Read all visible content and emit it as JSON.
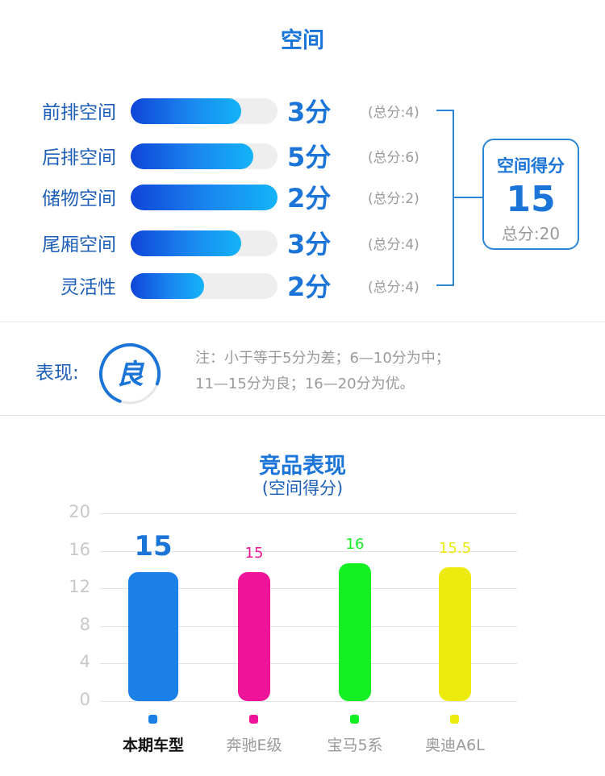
{
  "space": {
    "title": "空间",
    "rows": [
      {
        "label": "前排空间",
        "score": 3,
        "score_label": "3分",
        "total_label": "(总分:4)",
        "max": 4
      },
      {
        "label": "后排空间",
        "score": 5,
        "score_label": "5分",
        "total_label": "(总分:6)",
        "max": 6
      },
      {
        "label": "储物空间",
        "score": 2,
        "score_label": "2分",
        "total_label": "(总分:2)",
        "max": 2
      },
      {
        "label": "尾厢空间",
        "score": 3,
        "score_label": "3分",
        "total_label": "(总分:4)",
        "max": 4
      },
      {
        "label": "灵活性",
        "score": 2,
        "score_label": "2分",
        "total_label": "(总分:4)",
        "max": 4
      }
    ],
    "summary": {
      "label": "空间得分",
      "score": "15",
      "total_label": "总分:20"
    }
  },
  "performance": {
    "label": "表现:",
    "grade": "良",
    "ring_fraction": 0.75,
    "note_line1": "注：小于等于5分为差；6—10分为中；",
    "note_line2": "11—15分为良；16—20分为优。"
  },
  "chart_data": {
    "type": "bar",
    "title": "竞品表现",
    "subtitle": "(空间得分)",
    "categories": [
      "本期车型",
      "奔驰E级",
      "宝马5系",
      "奥迪A6L"
    ],
    "values": [
      15,
      15,
      16,
      15.5
    ],
    "value_labels": [
      "15",
      "15",
      "16",
      "15.5"
    ],
    "colors": [
      "#1a7fe6",
      "#ee1398",
      "#14ef24",
      "#ecea0e"
    ],
    "ylim": [
      0,
      20
    ],
    "yticks": [
      "0",
      "4",
      "8",
      "12",
      "16",
      "20"
    ],
    "grid": true
  }
}
